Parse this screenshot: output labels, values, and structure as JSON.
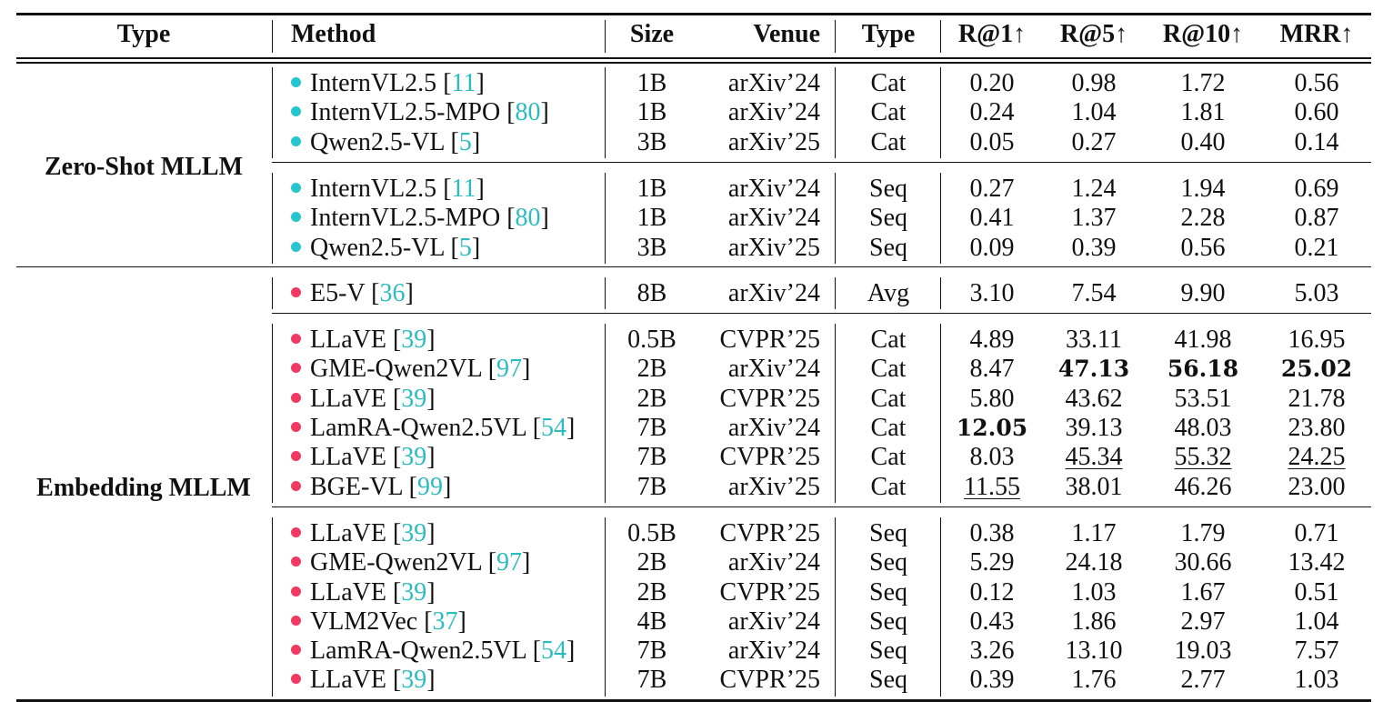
{
  "colors": {
    "zero_shot_dot": "#26c6cf",
    "embedding_dot": "#f03a64",
    "citation": "#2bbcc2"
  },
  "header": {
    "type": "Type",
    "method": "Method",
    "size": "Size",
    "venue": "Venue",
    "type2": "Type",
    "r1": "R@1↑",
    "r5": "R@5↑",
    "r10": "R@10↑",
    "mrr": "MRR↑"
  },
  "groups": [
    {
      "label": "Zero-Shot MLLM",
      "dot": "zero_shot_dot",
      "blocks": [
        [
          {
            "method": "InternVL2.5",
            "ref": "11",
            "size": "1B",
            "venue": "arXiv’24",
            "type": "Cat",
            "r1": "0.20",
            "r5": "0.98",
            "r10": "1.72",
            "mrr": "0.56"
          },
          {
            "method": "InternVL2.5-MPO",
            "ref": "80",
            "size": "1B",
            "venue": "arXiv’24",
            "type": "Cat",
            "r1": "0.24",
            "r5": "1.04",
            "r10": "1.81",
            "mrr": "0.60"
          },
          {
            "method": "Qwen2.5-VL",
            "ref": "5",
            "size": "3B",
            "venue": "arXiv’25",
            "type": "Cat",
            "r1": "0.05",
            "r5": "0.27",
            "r10": "0.40",
            "mrr": "0.14"
          }
        ],
        [
          {
            "method": "InternVL2.5",
            "ref": "11",
            "size": "1B",
            "venue": "arXiv’24",
            "type": "Seq",
            "r1": "0.27",
            "r5": "1.24",
            "r10": "1.94",
            "mrr": "0.69"
          },
          {
            "method": "InternVL2.5-MPO",
            "ref": "80",
            "size": "1B",
            "venue": "arXiv’24",
            "type": "Seq",
            "r1": "0.41",
            "r5": "1.37",
            "r10": "2.28",
            "mrr": "0.87"
          },
          {
            "method": "Qwen2.5-VL",
            "ref": "5",
            "size": "3B",
            "venue": "arXiv’25",
            "type": "Seq",
            "r1": "0.09",
            "r5": "0.39",
            "r10": "0.56",
            "mrr": "0.21"
          }
        ]
      ]
    },
    {
      "label": "Embedding MLLM",
      "dot": "embedding_dot",
      "blocks": [
        [
          {
            "method": "E5-V",
            "ref": "36",
            "size": "8B",
            "venue": "arXiv’24",
            "type": "Avg",
            "r1": "3.10",
            "r5": "7.54",
            "r10": "9.90",
            "mrr": "5.03"
          }
        ],
        [
          {
            "method": "LLaVE",
            "ref": "39",
            "size": "0.5B",
            "venue": "CVPR’25",
            "type": "Cat",
            "r1": "4.89",
            "r5": "33.11",
            "r10": "41.98",
            "mrr": "16.95"
          },
          {
            "method": "GME-Qwen2VL",
            "ref": "97",
            "size": "2B",
            "venue": "arXiv’24",
            "type": "Cat",
            "r1": "8.47",
            "r5": "47.13",
            "r10": "56.18",
            "mrr": "25.02",
            "bold": [
              "r5",
              "r10",
              "mrr"
            ]
          },
          {
            "method": "LLaVE",
            "ref": "39",
            "size": "2B",
            "venue": "CVPR’25",
            "type": "Cat",
            "r1": "5.80",
            "r5": "43.62",
            "r10": "53.51",
            "mrr": "21.78"
          },
          {
            "method": "LamRA-Qwen2.5VL",
            "ref": "54",
            "size": "7B",
            "venue": "arXiv’24",
            "type": "Cat",
            "r1": "12.05",
            "r5": "39.13",
            "r10": "48.03",
            "mrr": "23.80",
            "bold": [
              "r1"
            ]
          },
          {
            "method": "LLaVE",
            "ref": "39",
            "size": "7B",
            "venue": "CVPR’25",
            "type": "Cat",
            "r1": "8.03",
            "r5": "45.34",
            "r10": "55.32",
            "mrr": "24.25",
            "underline": [
              "r5",
              "r10",
              "mrr"
            ]
          },
          {
            "method": "BGE-VL",
            "ref": "99",
            "size": "7B",
            "venue": "arXiv’25",
            "type": "Cat",
            "r1": "11.55",
            "r5": "38.01",
            "r10": "46.26",
            "mrr": "23.00",
            "underline": [
              "r1"
            ]
          }
        ],
        [
          {
            "method": "LLaVE",
            "ref": "39",
            "size": "0.5B",
            "venue": "CVPR’25",
            "type": "Seq",
            "r1": "0.38",
            "r5": "1.17",
            "r10": "1.79",
            "mrr": "0.71"
          },
          {
            "method": "GME-Qwen2VL",
            "ref": "97",
            "size": "2B",
            "venue": "arXiv’24",
            "type": "Seq",
            "r1": "5.29",
            "r5": "24.18",
            "r10": "30.66",
            "mrr": "13.42"
          },
          {
            "method": "LLaVE",
            "ref": "39",
            "size": "2B",
            "venue": "CVPR’25",
            "type": "Seq",
            "r1": "0.12",
            "r5": "1.03",
            "r10": "1.67",
            "mrr": "0.51"
          },
          {
            "method": "VLM2Vec",
            "ref": "37",
            "size": "4B",
            "venue": "arXiv’24",
            "type": "Seq",
            "r1": "0.43",
            "r5": "1.86",
            "r10": "2.97",
            "mrr": "1.04"
          },
          {
            "method": "LamRA-Qwen2.5VL",
            "ref": "54",
            "size": "7B",
            "venue": "arXiv’24",
            "type": "Seq",
            "r1": "3.26",
            "r5": "13.10",
            "r10": "19.03",
            "mrr": "7.57"
          },
          {
            "method": "LLaVE",
            "ref": "39",
            "size": "7B",
            "venue": "CVPR’25",
            "type": "Seq",
            "r1": "0.39",
            "r5": "1.76",
            "r10": "2.77",
            "mrr": "1.03"
          }
        ]
      ]
    }
  ]
}
